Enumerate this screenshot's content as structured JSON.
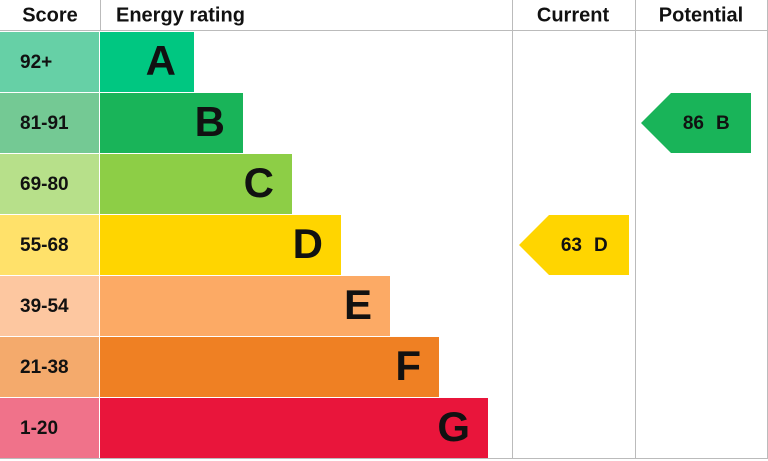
{
  "header": {
    "score": "Score",
    "rating": "Energy rating",
    "current": "Current",
    "potential": "Potential"
  },
  "bands": [
    {
      "score": "92+",
      "letter": "A"
    },
    {
      "score": "81-91",
      "letter": "B"
    },
    {
      "score": "69-80",
      "letter": "C"
    },
    {
      "score": "55-68",
      "letter": "D"
    },
    {
      "score": "39-54",
      "letter": "E"
    },
    {
      "score": "21-38",
      "letter": "F"
    },
    {
      "score": "1-20",
      "letter": "G"
    }
  ],
  "current": {
    "value": 63,
    "letter": "D"
  },
  "potential": {
    "value": 86,
    "letter": "B"
  }
}
